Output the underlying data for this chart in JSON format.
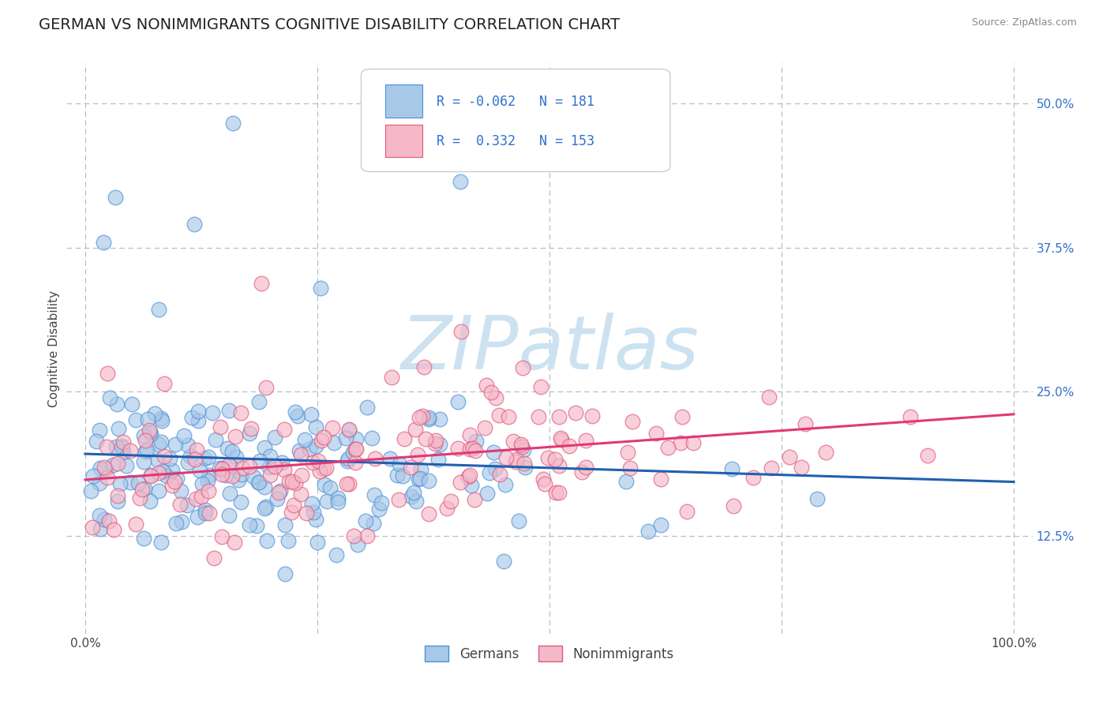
{
  "title": "GERMAN VS NONIMMIGRANTS COGNITIVE DISABILITY CORRELATION CHART",
  "source": "Source: ZipAtlas.com",
  "ylabel": "Cognitive Disability",
  "y_tick_labels": [
    "12.5%",
    "25.0%",
    "37.5%",
    "50.0%"
  ],
  "y_ticks": [
    0.125,
    0.25,
    0.375,
    0.5
  ],
  "xlim": [
    -0.02,
    1.02
  ],
  "ylim": [
    0.04,
    0.535
  ],
  "german_R": -0.062,
  "german_N": 181,
  "nonimm_R": 0.332,
  "nonimm_N": 153,
  "blue_fill": "#a8c8e8",
  "blue_edge": "#4a90d9",
  "pink_fill": "#f5b8c8",
  "pink_edge": "#e05878",
  "blue_line_color": "#2060b0",
  "pink_line_color": "#e03878",
  "background": "#ffffff",
  "grid_color": "#b0b8c8",
  "watermark_color": "#c8dff0",
  "title_fontsize": 14,
  "label_fontsize": 11,
  "tick_fontsize": 11,
  "legend_R_color": "#e03070",
  "legend_N_color": "#3070d0"
}
